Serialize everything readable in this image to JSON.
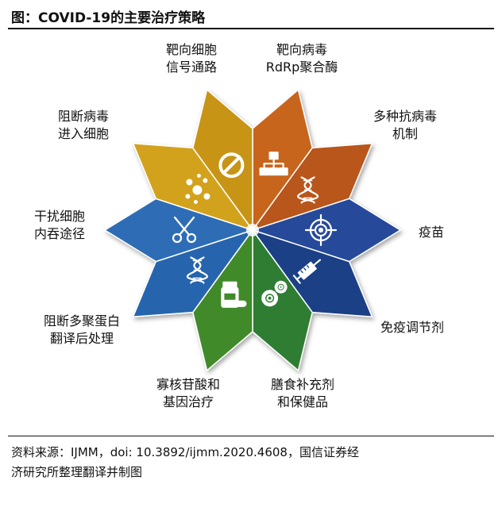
{
  "title": "图：COVID-19的主要治疗策略",
  "source_line1": "资料来源：IJMM，doi: 10.3892/ijmm.2020.4608，国信证券经",
  "source_line2": "济研究所整理翻译并制图",
  "segments": [
    {
      "label": [
        "靶向细胞",
        "信号通路"
      ],
      "color": "#c8651c",
      "icon": "flowchart-icon"
    },
    {
      "label": [
        "靶向病毒",
        "RdRp聚合酶"
      ],
      "color": "#b8561a",
      "icon": "dna-icon"
    },
    {
      "label": [
        "多种抗病毒",
        "机制"
      ],
      "color": "#25489a",
      "icon": "target-icon"
    },
    {
      "label": [
        "疫苗"
      ],
      "color": "#1d3f86",
      "icon": "syringe-icon"
    },
    {
      "label": [
        "免疫调节剂"
      ],
      "color": "#2e7d32",
      "icon": "gears-icon"
    },
    {
      "label": [
        "膳食补充剂",
        "和保健品"
      ],
      "color": "#3f8a2a",
      "icon": "supplement-bottle-icon"
    },
    {
      "label": [
        "寡核苷酸和",
        "基因治疗"
      ],
      "color": "#2665ae",
      "icon": "dna-icon"
    },
    {
      "label": [
        "阻断多聚蛋白",
        "翻译后处理"
      ],
      "color": "#2f6db6",
      "icon": "scissors-icon"
    },
    {
      "label": [
        "干扰细胞",
        "内吞途径"
      ],
      "color": "#d3a21f",
      "icon": "particles-icon"
    },
    {
      "label": [
        "阻断病毒",
        "进入细胞"
      ],
      "color": "#c89414",
      "icon": "prohibited-icon"
    }
  ]
}
